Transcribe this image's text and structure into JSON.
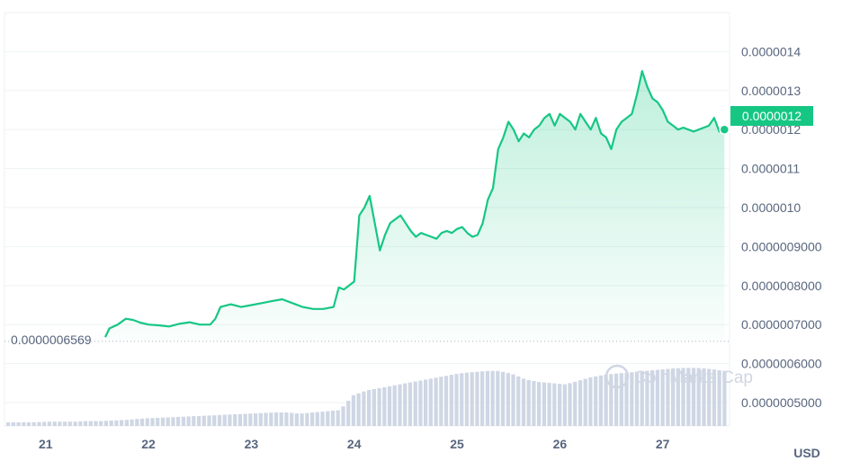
{
  "chart_data": {
    "type": "line",
    "currency": "USD",
    "watermark": "CoinMarketCap",
    "x_ticks": [
      "21",
      "22",
      "23",
      "24",
      "25",
      "26",
      "27"
    ],
    "y_ticks": [
      "0.0000014",
      "0.0000013",
      "0.0000012",
      "0.0000011",
      "0.0000010",
      "0.0000009000",
      "0.0000008000",
      "0.0000007000",
      "0.0000006000",
      "0.0000005000"
    ],
    "ylim": [
      4.4e-07,
      1.5e-06
    ],
    "open_price_label": "0.0000006569",
    "open_price": 6.569e-07,
    "current_price_label": "0.0000012",
    "current_price": 1.2e-06,
    "colors": {
      "line": "#16c784",
      "fill": "#16c784",
      "volume": "#cfd6e4",
      "grid": "#eff2f5",
      "badge": "#16c784"
    },
    "series": [
      {
        "type": "line",
        "x": [
          21.58,
          21.62,
          21.7,
          21.78,
          21.85,
          21.92,
          22.0,
          22.1,
          22.2,
          22.3,
          22.4,
          22.5,
          22.6,
          22.65,
          22.7,
          22.8,
          22.9,
          23.0,
          23.1,
          23.2,
          23.3,
          23.4,
          23.5,
          23.6,
          23.7,
          23.8,
          23.85,
          23.9,
          23.95,
          24.0,
          24.05,
          24.1,
          24.15,
          24.2,
          24.25,
          24.3,
          24.35,
          24.4,
          24.45,
          24.5,
          24.55,
          24.6,
          24.65,
          24.7,
          24.75,
          24.8,
          24.85,
          24.9,
          24.95,
          25.0,
          25.05,
          25.1,
          25.15,
          25.2,
          25.25,
          25.3,
          25.35,
          25.4,
          25.45,
          25.5,
          25.55,
          25.6,
          25.65,
          25.7,
          25.75,
          25.8,
          25.85,
          25.9,
          25.95,
          26.0,
          26.05,
          26.1,
          26.15,
          26.2,
          26.25,
          26.3,
          26.35,
          26.4,
          26.45,
          26.5,
          26.55,
          26.6,
          26.65,
          26.7,
          26.75,
          26.8,
          26.85,
          26.9,
          26.95,
          27.0,
          27.05,
          27.1,
          27.15,
          27.2,
          27.25,
          27.3,
          27.35,
          27.4,
          27.45,
          27.5,
          27.55,
          27.6
        ],
        "y": [
          6.68e-07,
          6.9e-07,
          7e-07,
          7.15e-07,
          7.12e-07,
          7.05e-07,
          7e-07,
          6.98e-07,
          6.95e-07,
          7.02e-07,
          7.06e-07,
          7e-07,
          7e-07,
          7.15e-07,
          7.45e-07,
          7.52e-07,
          7.45e-07,
          7.5e-07,
          7.55e-07,
          7.6e-07,
          7.65e-07,
          7.55e-07,
          7.45e-07,
          7.4e-07,
          7.4e-07,
          7.45e-07,
          7.95e-07,
          7.9e-07,
          8e-07,
          8.1e-07,
          9.8e-07,
          1e-06,
          1.03e-06,
          9.6e-07,
          8.9e-07,
          9.3e-07,
          9.6e-07,
          9.7e-07,
          9.8e-07,
          9.6e-07,
          9.4e-07,
          9.25e-07,
          9.35e-07,
          9.3e-07,
          9.25e-07,
          9.2e-07,
          9.35e-07,
          9.4e-07,
          9.35e-07,
          9.45e-07,
          9.5e-07,
          9.35e-07,
          9.25e-07,
          9.3e-07,
          9.6e-07,
          1.02e-06,
          1.05e-06,
          1.15e-06,
          1.18e-06,
          1.22e-06,
          1.2e-06,
          1.17e-06,
          1.19e-06,
          1.18e-06,
          1.2e-06,
          1.21e-06,
          1.23e-06,
          1.24e-06,
          1.21e-06,
          1.24e-06,
          1.23e-06,
          1.22e-06,
          1.2e-06,
          1.24e-06,
          1.22e-06,
          1.2e-06,
          1.23e-06,
          1.19e-06,
          1.18e-06,
          1.15e-06,
          1.2e-06,
          1.22e-06,
          1.23e-06,
          1.24e-06,
          1.29e-06,
          1.35e-06,
          1.31e-06,
          1.28e-06,
          1.27e-06,
          1.25e-06,
          1.22e-06,
          1.21e-06,
          1.2e-06,
          1.205e-06,
          1.2e-06,
          1.195e-06,
          1.2e-06,
          1.205e-06,
          1.21e-06,
          1.23e-06,
          1.195e-06,
          1.2e-06
        ]
      }
    ],
    "volume_shape": [
      0.06,
      0.06,
      0.06,
      0.07,
      0.07,
      0.07,
      0.08,
      0.08,
      0.09,
      0.1,
      0.12,
      0.13,
      0.14,
      0.15,
      0.16,
      0.17,
      0.18,
      0.19,
      0.2,
      0.21,
      0.22,
      0.22,
      0.2,
      0.22,
      0.24,
      0.26,
      0.5,
      0.58,
      0.62,
      0.66,
      0.7,
      0.74,
      0.78,
      0.82,
      0.86,
      0.88,
      0.9,
      0.9,
      0.85,
      0.76,
      0.72,
      0.7,
      0.68,
      0.74,
      0.8,
      0.84,
      0.86,
      0.88,
      0.9,
      0.92,
      0.94,
      0.95,
      0.95,
      0.93,
      0.9
    ]
  }
}
